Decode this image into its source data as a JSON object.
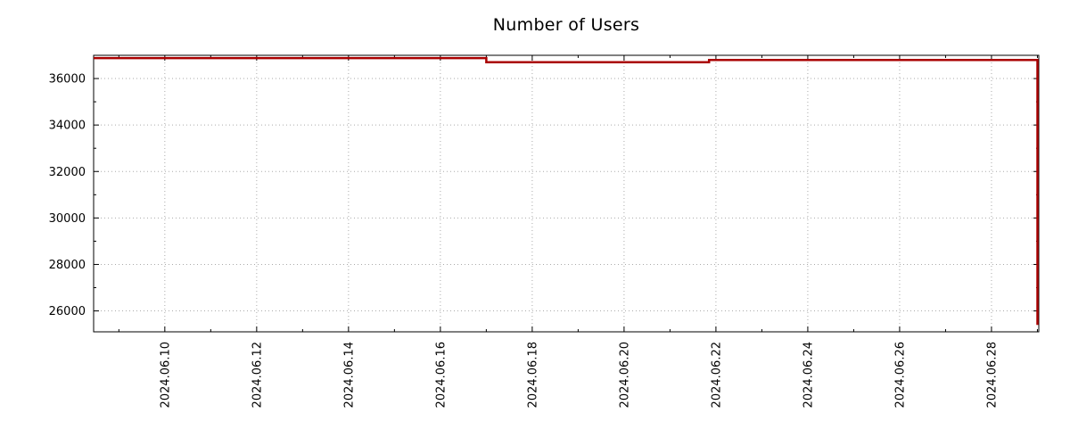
{
  "page": {
    "background": "#ffffff"
  },
  "chart_data": {
    "type": "line",
    "title": "Number of Users",
    "xlabel": "",
    "ylabel": "",
    "x_axis": {
      "unit": "date (June 2024, day of month)",
      "range": [
        8.45,
        29.03
      ],
      "major_ticks": [
        {
          "pos": 10,
          "label": "2024.06.10"
        },
        {
          "pos": 12,
          "label": "2024.06.12"
        },
        {
          "pos": 14,
          "label": "2024.06.14"
        },
        {
          "pos": 16,
          "label": "2024.06.16"
        },
        {
          "pos": 18,
          "label": "2024.06.18"
        },
        {
          "pos": 20,
          "label": "2024.06.20"
        },
        {
          "pos": 22,
          "label": "2024.06.22"
        },
        {
          "pos": 24,
          "label": "2024.06.24"
        },
        {
          "pos": 26,
          "label": "2024.06.26"
        },
        {
          "pos": 28,
          "label": "2024.06.28"
        }
      ],
      "minor_tick_step": 1,
      "label_rotation": -90
    },
    "y_axis": {
      "range": [
        25100,
        37000
      ],
      "major_ticks": [
        26000,
        28000,
        30000,
        32000,
        34000,
        36000
      ],
      "minor_tick_step": 1000
    },
    "grid": {
      "show": true,
      "style": "dotted",
      "color": "#aaaaaa"
    },
    "legend": {
      "show": false
    },
    "frame_color": "#000000",
    "tick_label_color": "#000000",
    "series": [
      {
        "name": "Number of Users",
        "color": "#aa0000",
        "line_width": 2.5,
        "points": [
          [
            8.45,
            36880
          ],
          [
            17.0,
            36880
          ],
          [
            17.0,
            36700
          ],
          [
            21.85,
            36700
          ],
          [
            21.85,
            36800
          ],
          [
            29.0,
            36800
          ],
          [
            29.0,
            25400
          ]
        ]
      }
    ]
  }
}
